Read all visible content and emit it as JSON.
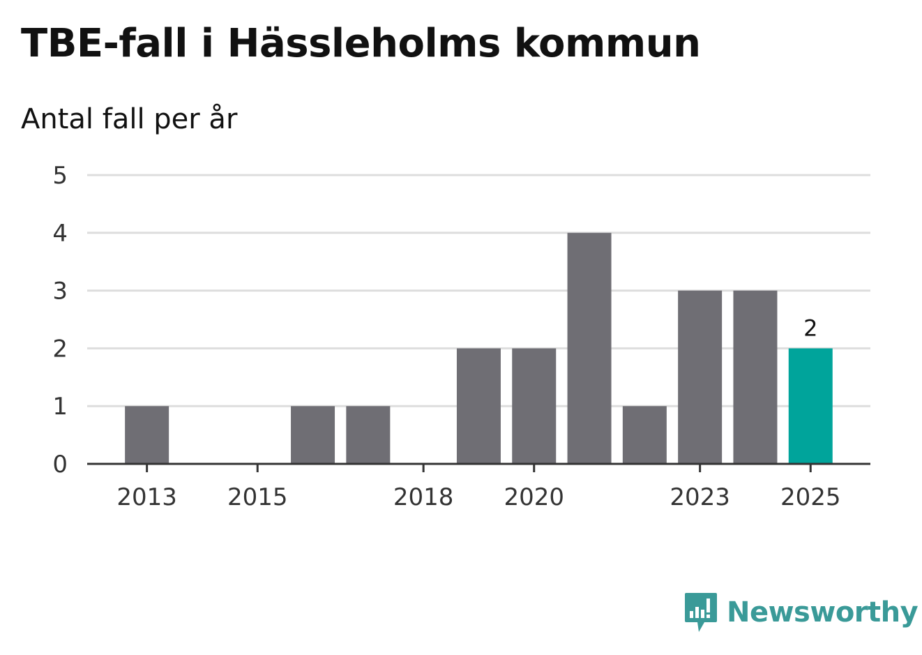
{
  "title": "TBE-fall i Hässleholms kommun",
  "subtitle": "Antal fall per år",
  "brand": {
    "name": "Newsworthy",
    "icon": "newsworthy-logo-icon"
  },
  "colors": {
    "bar": "#6f6e74",
    "highlight": "#00a49b",
    "grid": "#dddddd",
    "axis": "#333333",
    "brand": "#3a9a98"
  },
  "chart_data": {
    "type": "bar",
    "title": "TBE-fall i Hässleholms kommun",
    "ylabel": "Antal fall per år",
    "xlabel": "",
    "ylim": [
      0,
      5
    ],
    "yticks": [
      0,
      1,
      2,
      3,
      4,
      5
    ],
    "x_tick_labels": [
      "2013",
      "2015",
      "2018",
      "2020",
      "2023",
      "2025"
    ],
    "categories": [
      "2013",
      "2014",
      "2015",
      "2016",
      "2017",
      "2018",
      "2019",
      "2020",
      "2021",
      "2022",
      "2023",
      "2024",
      "2025"
    ],
    "values": [
      1,
      0,
      0,
      1,
      1,
      0,
      2,
      2,
      4,
      1,
      3,
      3,
      2
    ],
    "highlight_index": 12,
    "data_labels": [
      {
        "index": 12,
        "text": "2"
      }
    ],
    "grid": true
  }
}
